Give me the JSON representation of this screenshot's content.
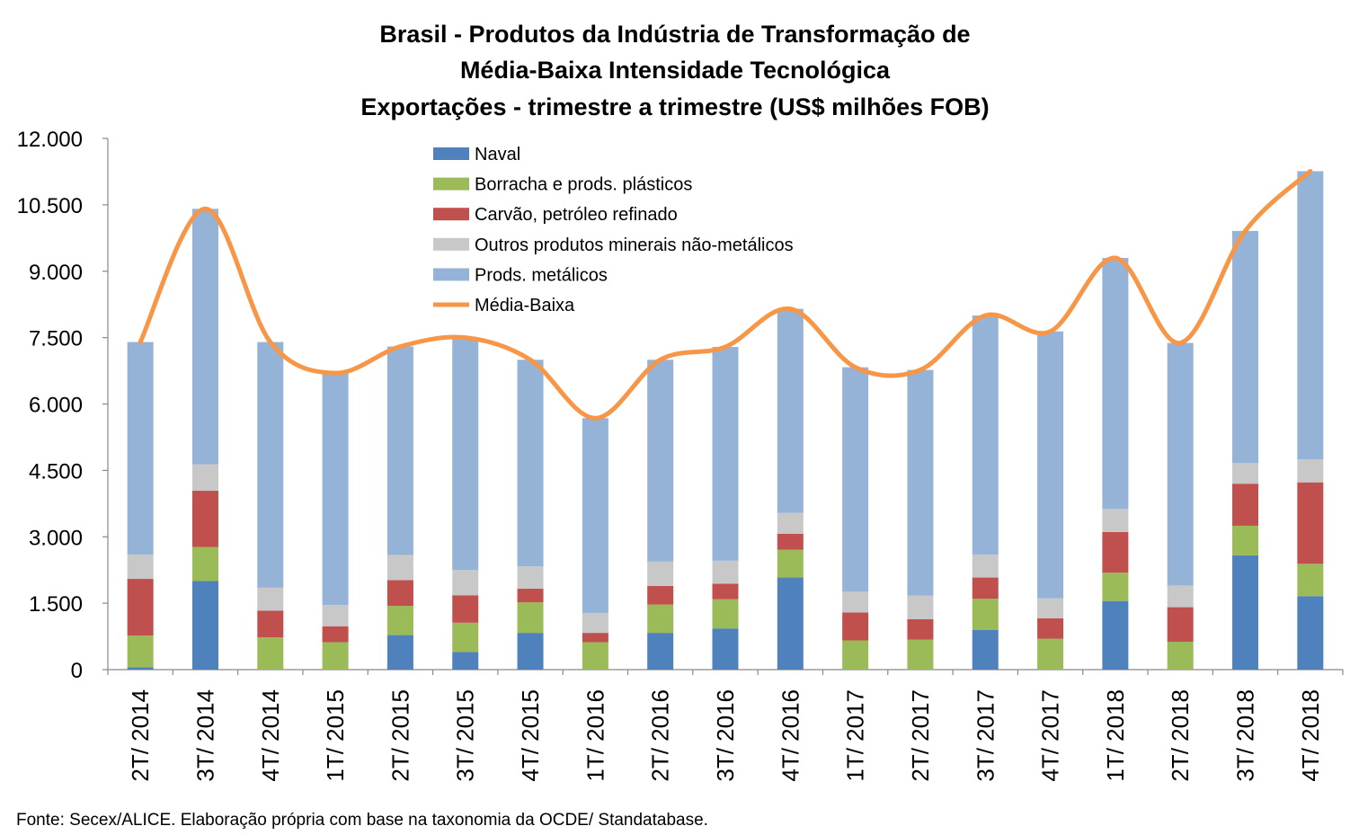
{
  "chart_data": {
    "type": "bar",
    "stacked": true,
    "title_lines": [
      "Brasil - Produtos da Indústria de Transformação de",
      "Média-Baixa Intensidade Tecnológica",
      "Exportações - trimestre a trimestre (US$ milhões FOB)"
    ],
    "categories": [
      "2T/ 2014",
      "3T/ 2014",
      "4T/ 2014",
      "1T/ 2015",
      "2T/ 2015",
      "3T/ 2015",
      "4T/ 2015",
      "1T/ 2016",
      "2T/ 2016",
      "3T/ 2016",
      "4T/ 2016",
      "1T/ 2017",
      "2T/ 2017",
      "3T/ 2017",
      "4T/ 2017",
      "1T/ 2018",
      "2T/ 2018",
      "3T/ 2018",
      "4T/ 2018"
    ],
    "yticks": [
      "0",
      "1.500",
      "3.000",
      "4.500",
      "6.000",
      "7.500",
      "9.000",
      "10.500",
      "12.000"
    ],
    "ylim": [
      0,
      12000
    ],
    "series": [
      {
        "name": "Naval",
        "color": "#4F81BD",
        "values": [
          50,
          2000,
          0,
          0,
          780,
          400,
          830,
          0,
          830,
          930,
          2080,
          0,
          0,
          900,
          0,
          1550,
          0,
          2580,
          1660
        ]
      },
      {
        "name": "Borracha e prods. plásticos",
        "color": "#9BBB59",
        "values": [
          720,
          770,
          730,
          620,
          660,
          660,
          690,
          620,
          640,
          660,
          630,
          660,
          680,
          700,
          700,
          640,
          630,
          670,
          730
        ]
      },
      {
        "name": "Carvão, petróleo refinado",
        "color": "#C0504D",
        "values": [
          1280,
          1270,
          600,
          360,
          580,
          620,
          310,
          210,
          420,
          350,
          360,
          630,
          460,
          480,
          460,
          920,
          780,
          950,
          1840
        ]
      },
      {
        "name": "Outros produtos minerais não-metálicos",
        "color": "#C8C8C8",
        "values": [
          550,
          600,
          520,
          480,
          570,
          570,
          500,
          450,
          550,
          520,
          470,
          470,
          530,
          520,
          450,
          520,
          490,
          470,
          520
        ]
      },
      {
        "name": "Prods. metálicos",
        "color": "#95B3D7",
        "values": [
          4800,
          5770,
          5550,
          5240,
          4710,
          5250,
          4670,
          4400,
          4560,
          4830,
          4610,
          5070,
          5100,
          5400,
          6030,
          5670,
          5480,
          5240,
          6510
        ]
      }
    ],
    "line_series": {
      "name": "Média-Baixa",
      "color": "#F79646",
      "values": [
        7400,
        10410,
        7400,
        6700,
        7300,
        7500,
        7000,
        5680,
        7000,
        7290,
        8150,
        6830,
        6770,
        8000,
        7640,
        9300,
        7380,
        9910,
        11260
      ]
    },
    "legend_position": "top-center",
    "grid": false
  },
  "source_text": "Fonte: Secex/ALICE. Elaboração própria com base na taxonomia da OCDE/ Standatabase."
}
